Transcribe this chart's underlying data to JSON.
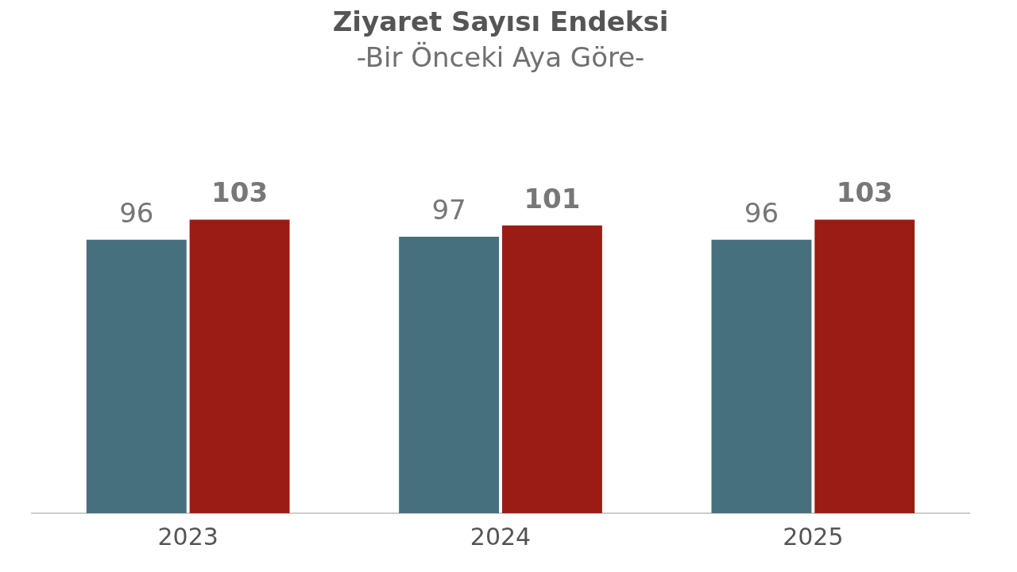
{
  "chart_data": {
    "type": "bar",
    "title": "Ziyaret Sayısı Endeksi",
    "subtitle": "-Bir Önceki Aya Göre-",
    "categories": [
      "2023",
      "2024",
      "2025"
    ],
    "series": [
      {
        "color": "#46707e",
        "values": [
          96,
          97,
          96
        ]
      },
      {
        "color": "#9b1c14",
        "values": [
          103,
          101,
          103
        ]
      }
    ],
    "data_labels": true
  }
}
